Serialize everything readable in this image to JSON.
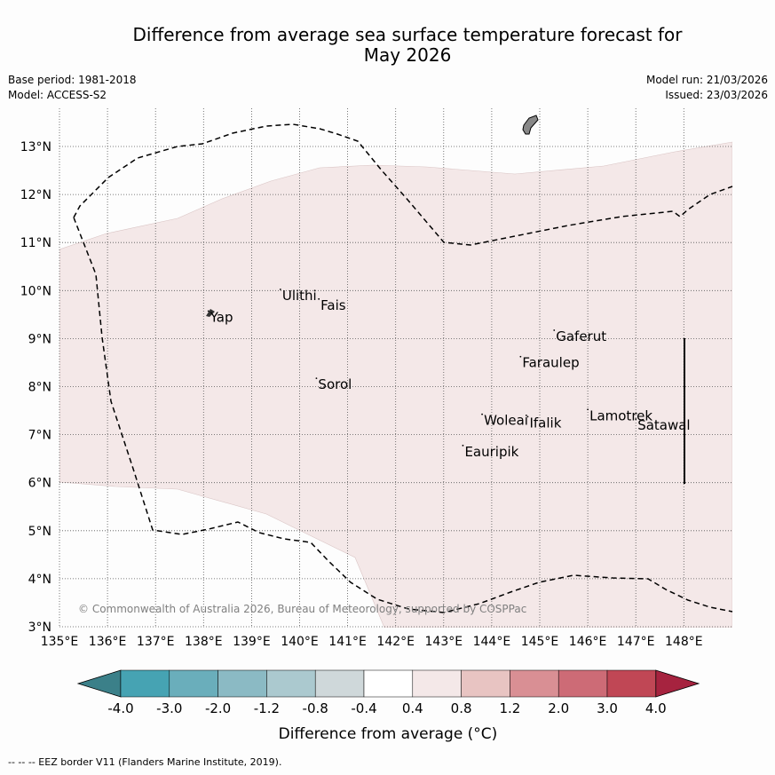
{
  "title_line1": "Difference from average sea surface temperature forecast for",
  "title_line2": "May 2026",
  "meta_left": [
    "Base period: 1981-2018",
    "Model: ACCESS-S2"
  ],
  "meta_right": [
    "Model run: 21/03/2026",
    "Issued: 23/03/2026"
  ],
  "map": {
    "lon_range": [
      135,
      149
    ],
    "lat_range": [
      3,
      13.8
    ],
    "lon_ticks": [
      "135°E",
      "136°E",
      "137°E",
      "138°E",
      "139°E",
      "140°E",
      "141°E",
      "142°E",
      "143°E",
      "144°E",
      "145°E",
      "146°E",
      "147°E",
      "148°E"
    ],
    "lat_ticks": [
      "3°N",
      "4°N",
      "5°N",
      "6°N",
      "7°N",
      "8°N",
      "9°N",
      "10°N",
      "11°N",
      "12°N",
      "13°N"
    ],
    "copyright": "© Commonwealth of Australia 2026, Bureau of Meteorology, supported by COSPPac",
    "anomaly_color": "#f4e8e8"
  },
  "places": [
    {
      "name": "Yap",
      "lon": 138.1,
      "lat": 9.5
    },
    {
      "name": "Ulithi",
      "lon": 139.6,
      "lat": 9.95
    },
    {
      "name": "Fais",
      "lon": 140.4,
      "lat": 9.75
    },
    {
      "name": "Sorol",
      "lon": 140.35,
      "lat": 8.1
    },
    {
      "name": "Gaferut",
      "lon": 145.3,
      "lat": 9.1
    },
    {
      "name": "Faraulep",
      "lon": 144.6,
      "lat": 8.55
    },
    {
      "name": "Woleai",
      "lon": 143.8,
      "lat": 7.35
    },
    {
      "name": "Ifalik",
      "lon": 144.75,
      "lat": 7.3
    },
    {
      "name": "Eauripik",
      "lon": 143.4,
      "lat": 6.7
    },
    {
      "name": "Lamotrek",
      "lon": 146.0,
      "lat": 7.45
    },
    {
      "name": "Satawal",
      "lon": 147.0,
      "lat": 7.25
    }
  ],
  "colorbar": {
    "labels": [
      "-4.0",
      "-3.0",
      "-2.0",
      "-1.2",
      "-0.8",
      "-0.4",
      "0.4",
      "0.8",
      "1.2",
      "2.0",
      "3.0",
      "4.0"
    ],
    "colors": [
      "#46a3b3",
      "#6aaebb",
      "#8bbac4",
      "#abc9cf",
      "#cfd8da",
      "#ffffff",
      "#f4e8e8",
      "#e8c4c2",
      "#d98f94",
      "#cd6b76",
      "#c04755"
    ],
    "under_color": "#3b8089",
    "over_color": "#a6233f",
    "label": "Difference from average (°C)"
  },
  "footnote": "--  --  -- EEZ border V11 (Flanders Marine Institute, 2019)."
}
